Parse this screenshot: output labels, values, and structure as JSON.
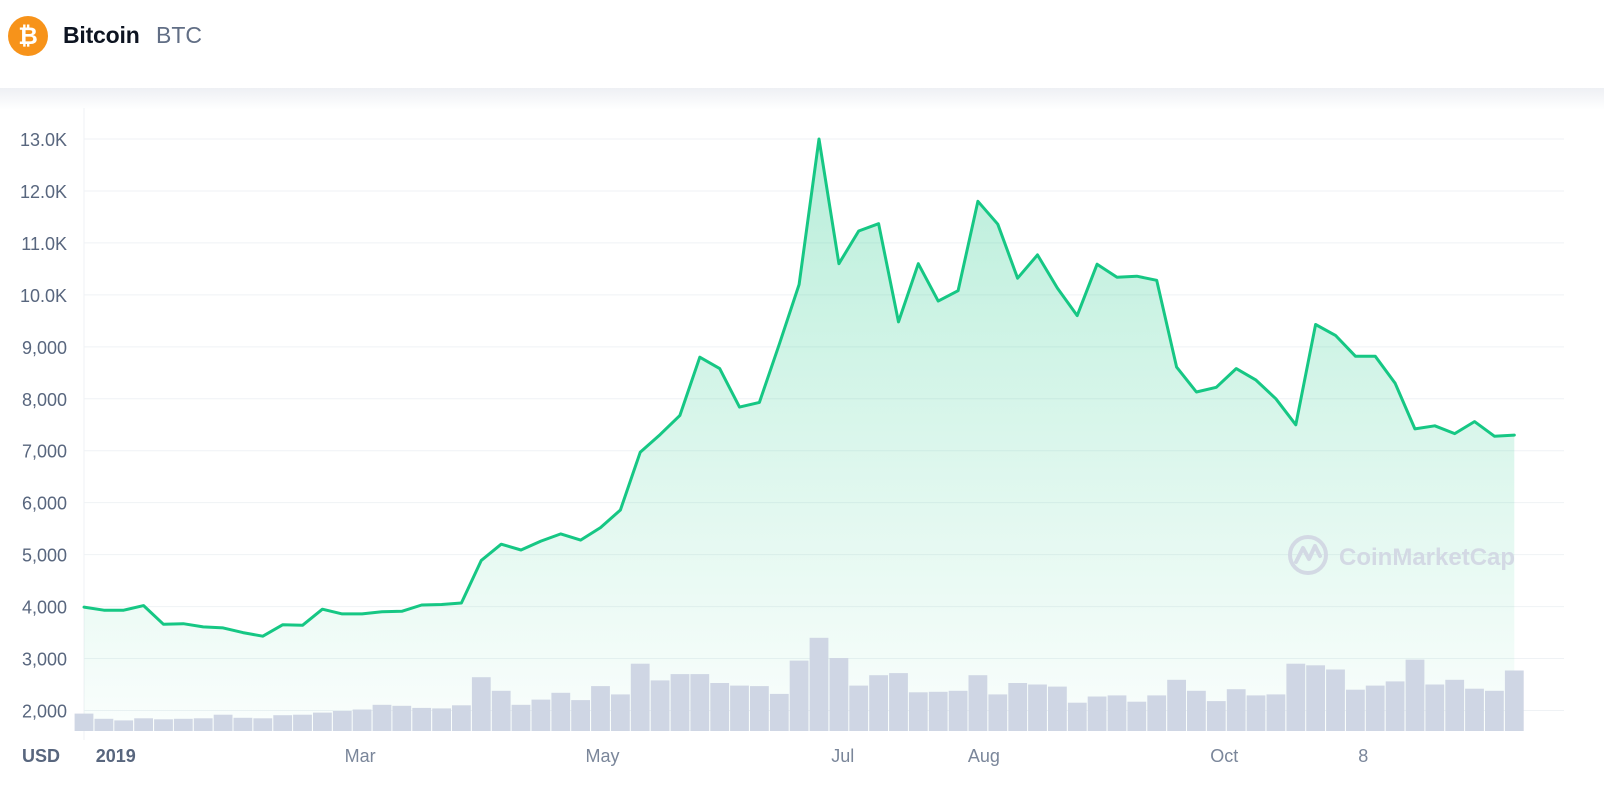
{
  "header": {
    "coin_name": "Bitcoin",
    "coin_symbol": "BTC",
    "logo_glyph": "₿",
    "logo_color": "#f7931a"
  },
  "watermark": {
    "text": "CoinMarketCap"
  },
  "chart_data": {
    "type": "area",
    "title": "",
    "currency_label": "USD",
    "xlabel": "",
    "ylabel": "",
    "ylim": [
      1600,
      13000
    ],
    "grid": true,
    "legend": "none",
    "line_color": "#16c784",
    "volume_color": "#cfd6e4",
    "y_ticks": [
      2000,
      3000,
      4000,
      5000,
      6000,
      7000,
      8000,
      9000,
      10000,
      11000,
      12000,
      13000
    ],
    "y_tick_labels": [
      "2,000",
      "3,000",
      "4,000",
      "5,000",
      "6,000",
      "7,000",
      "8,000",
      "9,000",
      "10.0K",
      "11.0K",
      "12.0K",
      "13.0K"
    ],
    "x_range": [
      0,
      74
    ],
    "x_ticks": [
      {
        "x": 1.6,
        "label": "2019",
        "bold": true
      },
      {
        "x": 13.9,
        "label": "Mar",
        "bold": false
      },
      {
        "x": 26.1,
        "label": "May",
        "bold": false
      },
      {
        "x": 38.2,
        "label": "Jul",
        "bold": false
      },
      {
        "x": 45.3,
        "label": "Aug",
        "bold": false
      },
      {
        "x": 57.4,
        "label": "Oct",
        "bold": false
      },
      {
        "x": 64.4,
        "label": "8",
        "bold": false
      }
    ],
    "price": [
      3990,
      3930,
      3930,
      4020,
      3660,
      3670,
      3610,
      3590,
      3500,
      3430,
      3650,
      3640,
      3950,
      3860,
      3860,
      3900,
      3910,
      4030,
      4040,
      4070,
      4890,
      5200,
      5090,
      5260,
      5400,
      5280,
      5520,
      5860,
      6970,
      7310,
      7680,
      8800,
      8580,
      7840,
      7930,
      9050,
      10200,
      13000,
      10600,
      11230,
      11370,
      9480,
      10600,
      9880,
      10080,
      11800,
      11360,
      10320,
      10770,
      10130,
      9600,
      10590,
      10340,
      10360,
      10280,
      8610,
      8130,
      8220,
      8580,
      8360,
      8000,
      7500,
      9430,
      9220,
      8820,
      8820,
      8300,
      7420,
      7480,
      7330,
      7560,
      7280,
      7300
    ],
    "volume": [
      1940,
      1840,
      1810,
      1850,
      1830,
      1840,
      1850,
      1920,
      1860,
      1850,
      1910,
      1920,
      1960,
      1990,
      2020,
      2110,
      2090,
      2050,
      2040,
      2100,
      2640,
      2380,
      2110,
      2210,
      2340,
      2200,
      2470,
      2310,
      2900,
      2580,
      2700,
      2700,
      2530,
      2480,
      2470,
      2320,
      2960,
      3400,
      3010,
      2480,
      2680,
      2720,
      2350,
      2360,
      2380,
      2680,
      2310,
      2530,
      2500,
      2460,
      2150,
      2270,
      2290,
      2170,
      2290,
      2590,
      2380,
      2180,
      2410,
      2290,
      2310,
      2900,
      2870,
      2790,
      2400,
      2480,
      2560,
      2980,
      2500,
      2590,
      2420,
      2380,
      2770
    ]
  }
}
